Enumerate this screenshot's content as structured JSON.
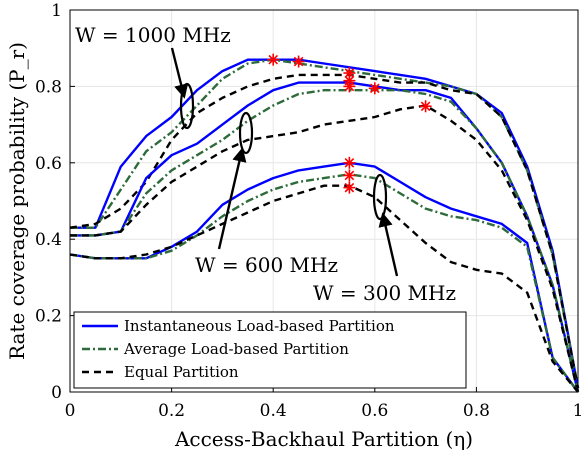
{
  "chart_data": {
    "type": "line",
    "xlabel": "Access-Backhaul Partition (η)",
    "ylabel": "Rate coverage probability (P_r)",
    "xlim": [
      0,
      1
    ],
    "ylim": [
      0,
      1
    ],
    "xticks": [
      0,
      0.2,
      0.4,
      0.6,
      0.8,
      1
    ],
    "yticks": [
      0,
      0.2,
      0.4,
      0.6,
      0.8,
      1
    ],
    "xtick_labels": [
      "0",
      "0.2",
      "0.4",
      "0.6",
      "0.8",
      "1"
    ],
    "ytick_labels": [
      "0",
      "0.2",
      "0.4",
      "0.6",
      "0.8",
      "1"
    ],
    "grid": true,
    "legend_position": "bottom-left",
    "legend": [
      {
        "label": "Instantaneous Load-based Partition",
        "color": "#0000ff",
        "style": "solid"
      },
      {
        "label": "Average Load-based Partition",
        "color": "#2e6b3a",
        "style": "dashdot"
      },
      {
        "label": "Equal Partition",
        "color": "#000000",
        "style": "dashed"
      }
    ],
    "annotations": [
      {
        "text": "W = 1000 MHz",
        "at": [
          0.23,
          0.76
        ]
      },
      {
        "text": "W = 600 MHz",
        "at": [
          0.345,
          0.69
        ]
      },
      {
        "text": "W = 300 MHz",
        "at": [
          0.615,
          0.55
        ]
      }
    ],
    "series": [
      {
        "group": "1000 MHz",
        "style": "instantaneous",
        "color": "#0000ff",
        "dash": "",
        "x": [
          0,
          0.05,
          0.1,
          0.15,
          0.2,
          0.25,
          0.3,
          0.35,
          0.4,
          0.45,
          0.5,
          0.55,
          0.6,
          0.65,
          0.7,
          0.75,
          0.8,
          0.85,
          0.9,
          0.95,
          1
        ],
        "y": [
          0.43,
          0.43,
          0.59,
          0.67,
          0.72,
          0.79,
          0.84,
          0.87,
          0.87,
          0.87,
          0.86,
          0.85,
          0.84,
          0.83,
          0.82,
          0.8,
          0.78,
          0.73,
          0.59,
          0.37,
          0.01
        ]
      },
      {
        "group": "1000 MHz",
        "style": "average",
        "color": "#2e6b3a",
        "dash": "8,3,2,3",
        "x": [
          0,
          0.05,
          0.1,
          0.15,
          0.2,
          0.25,
          0.3,
          0.35,
          0.4,
          0.45,
          0.5,
          0.55,
          0.6,
          0.65,
          0.7,
          0.75,
          0.8,
          0.85,
          0.9,
          0.95,
          1
        ],
        "y": [
          0.43,
          0.43,
          0.53,
          0.63,
          0.68,
          0.75,
          0.82,
          0.86,
          0.87,
          0.86,
          0.85,
          0.84,
          0.83,
          0.82,
          0.81,
          0.8,
          0.78,
          0.72,
          0.58,
          0.36,
          0.01
        ]
      },
      {
        "group": "1000 MHz",
        "style": "equal",
        "color": "#000000",
        "dash": "7,5",
        "x": [
          0,
          0.05,
          0.1,
          0.15,
          0.2,
          0.25,
          0.3,
          0.35,
          0.4,
          0.45,
          0.5,
          0.55,
          0.6,
          0.65,
          0.7,
          0.75,
          0.8,
          0.85,
          0.9,
          0.95,
          1
        ],
        "y": [
          0.43,
          0.44,
          0.48,
          0.55,
          0.66,
          0.73,
          0.77,
          0.8,
          0.82,
          0.83,
          0.83,
          0.83,
          0.82,
          0.81,
          0.81,
          0.79,
          0.78,
          0.72,
          0.58,
          0.36,
          0.01
        ]
      },
      {
        "group": "600 MHz",
        "style": "instantaneous",
        "color": "#0000ff",
        "dash": "",
        "x": [
          0,
          0.05,
          0.1,
          0.15,
          0.2,
          0.25,
          0.3,
          0.35,
          0.4,
          0.45,
          0.5,
          0.55,
          0.6,
          0.65,
          0.7,
          0.75,
          0.8,
          0.85,
          0.9,
          0.95,
          1
        ],
        "y": [
          0.41,
          0.41,
          0.42,
          0.56,
          0.62,
          0.65,
          0.7,
          0.75,
          0.79,
          0.81,
          0.81,
          0.81,
          0.8,
          0.79,
          0.79,
          0.77,
          0.69,
          0.6,
          0.46,
          0.28,
          0.0
        ]
      },
      {
        "group": "600 MHz",
        "style": "average",
        "color": "#2e6b3a",
        "dash": "8,3,2,3",
        "x": [
          0,
          0.05,
          0.1,
          0.15,
          0.2,
          0.25,
          0.3,
          0.35,
          0.4,
          0.45,
          0.5,
          0.55,
          0.6,
          0.65,
          0.7,
          0.75,
          0.8,
          0.85,
          0.9,
          0.95,
          1
        ],
        "y": [
          0.41,
          0.41,
          0.42,
          0.52,
          0.58,
          0.62,
          0.66,
          0.71,
          0.75,
          0.78,
          0.79,
          0.79,
          0.79,
          0.79,
          0.78,
          0.76,
          0.69,
          0.6,
          0.46,
          0.28,
          0.0
        ]
      },
      {
        "group": "600 MHz",
        "style": "equal",
        "color": "#000000",
        "dash": "7,5",
        "x": [
          0,
          0.05,
          0.1,
          0.15,
          0.2,
          0.25,
          0.3,
          0.35,
          0.4,
          0.45,
          0.5,
          0.55,
          0.6,
          0.65,
          0.7,
          0.75,
          0.8,
          0.85,
          0.9,
          0.95,
          1
        ],
        "y": [
          0.41,
          0.41,
          0.42,
          0.49,
          0.55,
          0.59,
          0.63,
          0.66,
          0.67,
          0.68,
          0.7,
          0.71,
          0.72,
          0.74,
          0.75,
          0.71,
          0.66,
          0.58,
          0.45,
          0.27,
          0.0
        ]
      },
      {
        "group": "300 MHz",
        "style": "instantaneous",
        "color": "#0000ff",
        "dash": "",
        "x": [
          0,
          0.05,
          0.1,
          0.15,
          0.2,
          0.25,
          0.3,
          0.35,
          0.4,
          0.45,
          0.5,
          0.55,
          0.6,
          0.65,
          0.7,
          0.75,
          0.8,
          0.85,
          0.9,
          0.95,
          1
        ],
        "y": [
          0.36,
          0.35,
          0.35,
          0.35,
          0.38,
          0.42,
          0.49,
          0.53,
          0.56,
          0.58,
          0.59,
          0.6,
          0.59,
          0.55,
          0.51,
          0.48,
          0.46,
          0.44,
          0.39,
          0.09,
          0.0
        ]
      },
      {
        "group": "300 MHz",
        "style": "average",
        "color": "#2e6b3a",
        "dash": "8,3,2,3",
        "x": [
          0,
          0.05,
          0.1,
          0.15,
          0.2,
          0.25,
          0.3,
          0.35,
          0.4,
          0.45,
          0.5,
          0.55,
          0.6,
          0.65,
          0.7,
          0.75,
          0.8,
          0.85,
          0.9,
          0.95,
          1
        ],
        "y": [
          0.36,
          0.35,
          0.35,
          0.35,
          0.37,
          0.41,
          0.46,
          0.5,
          0.53,
          0.55,
          0.56,
          0.57,
          0.56,
          0.52,
          0.48,
          0.46,
          0.45,
          0.43,
          0.38,
          0.09,
          0.0
        ]
      },
      {
        "group": "300 MHz",
        "style": "equal",
        "color": "#000000",
        "dash": "7,5",
        "x": [
          0,
          0.05,
          0.1,
          0.15,
          0.2,
          0.25,
          0.3,
          0.35,
          0.4,
          0.45,
          0.5,
          0.55,
          0.6,
          0.65,
          0.7,
          0.75,
          0.8,
          0.85,
          0.9,
          0.95,
          1
        ],
        "y": [
          0.36,
          0.35,
          0.35,
          0.36,
          0.38,
          0.41,
          0.44,
          0.47,
          0.5,
          0.52,
          0.54,
          0.54,
          0.51,
          0.45,
          0.39,
          0.34,
          0.32,
          0.31,
          0.26,
          0.08,
          0.0
        ]
      }
    ],
    "optimal_markers": {
      "color": "#ff0000",
      "points": [
        {
          "x": 0.4,
          "y": 0.87
        },
        {
          "x": 0.45,
          "y": 0.865
        },
        {
          "x": 0.55,
          "y": 0.835
        },
        {
          "x": 0.55,
          "y": 0.815
        },
        {
          "x": 0.55,
          "y": 0.8
        },
        {
          "x": 0.6,
          "y": 0.795
        },
        {
          "x": 0.7,
          "y": 0.748
        },
        {
          "x": 0.55,
          "y": 0.6
        },
        {
          "x": 0.55,
          "y": 0.567
        },
        {
          "x": 0.55,
          "y": 0.535
        }
      ]
    }
  }
}
